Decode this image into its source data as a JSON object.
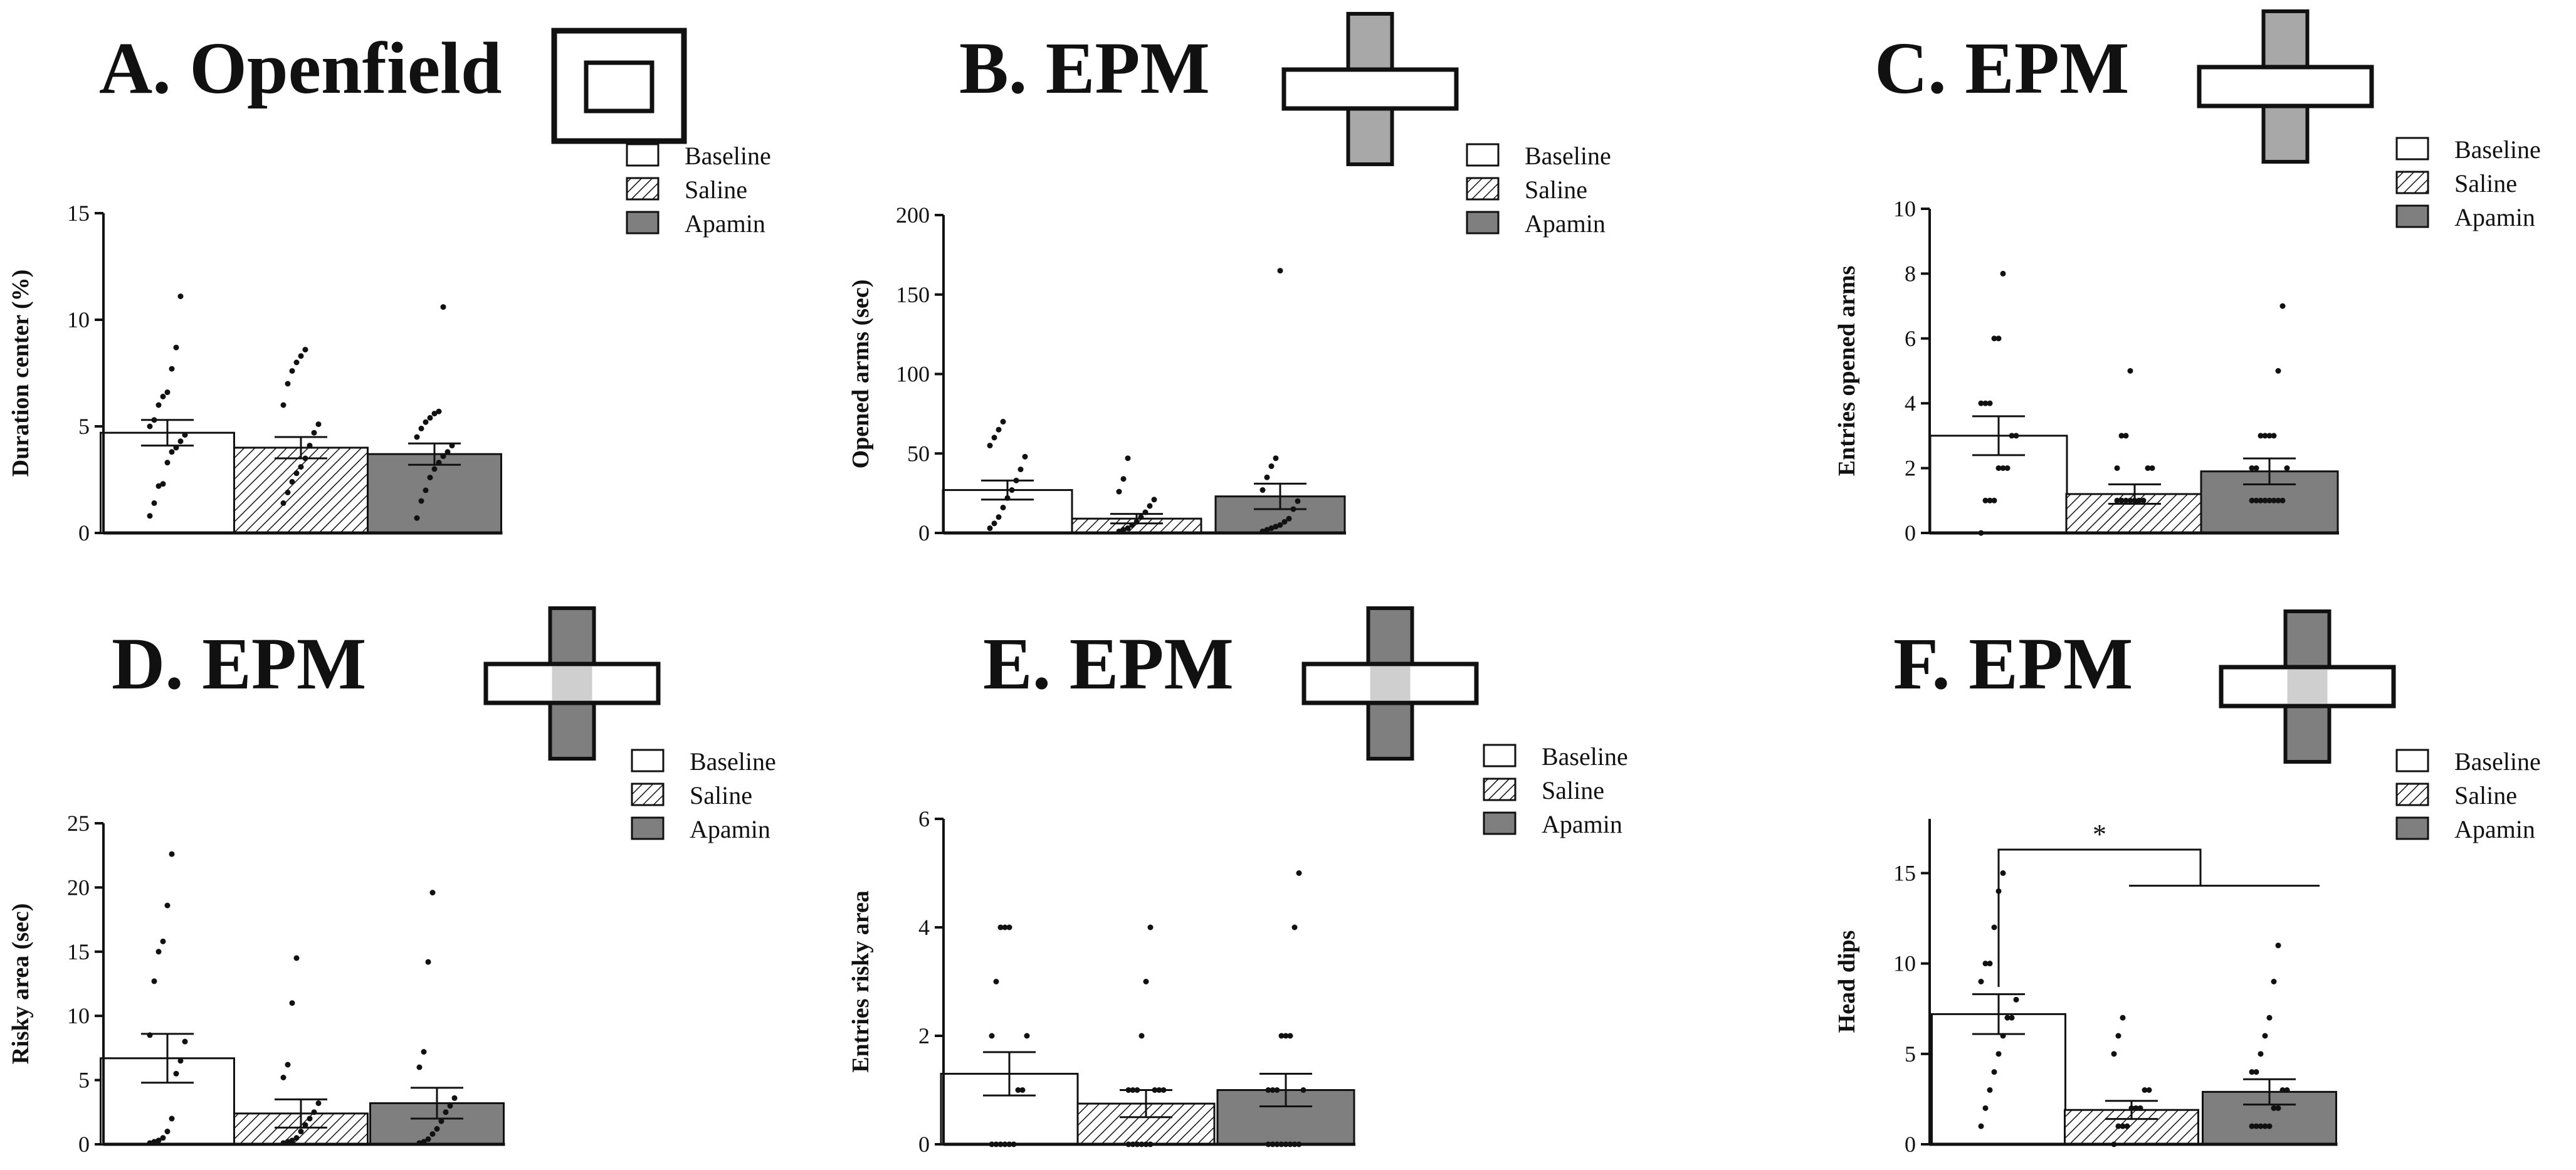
{
  "chart_data": [
    {
      "type": "bar",
      "panel": "A",
      "title": "A. Openfield",
      "arena": "openfield",
      "ylabel": "Duration center (%)",
      "ylim": [
        0,
        15
      ],
      "yticks": [
        0,
        5,
        10,
        15
      ],
      "categories": [
        "Baseline",
        "Saline",
        "Apamin"
      ],
      "values": [
        4.7,
        4.0,
        3.7
      ],
      "sem": [
        0.6,
        0.5,
        0.5
      ],
      "points": [
        [
          0.8,
          1.4,
          2.2,
          2.3,
          3.3,
          3.8,
          4.0,
          4.3,
          4.6,
          5.0,
          5.3,
          6.0,
          6.4,
          6.6,
          7.7,
          8.7,
          11.1
        ],
        [
          1.4,
          1.9,
          2.4,
          2.8,
          3.1,
          3.5,
          4.1,
          4.7,
          5.1,
          6.0,
          7.0,
          7.6,
          8.0,
          8.3,
          8.6
        ],
        [
          0.7,
          1.5,
          2.0,
          2.6,
          3.0,
          3.3,
          3.6,
          3.8,
          4.1,
          4.5,
          4.9,
          5.2,
          5.4,
          5.6,
          5.7,
          10.6
        ]
      ],
      "legend": [
        "Baseline",
        "Saline",
        "Apamin"
      ],
      "colors": [
        "#ffffff",
        "hatch",
        "#7f7f7f"
      ],
      "significance": ""
    },
    {
      "type": "bar",
      "panel": "B",
      "title": "B. EPM",
      "arena": "epm-open",
      "ylabel": "Opened arms (sec)",
      "ylim": [
        0,
        200
      ],
      "yticks": [
        0,
        50,
        100,
        150,
        200
      ],
      "categories": [
        "Baseline",
        "Saline",
        "Apamin"
      ],
      "values": [
        27,
        9,
        23
      ],
      "sem": [
        6,
        3,
        8
      ],
      "points": [
        [
          3,
          6,
          10,
          16,
          22,
          27,
          33,
          40,
          48,
          55,
          60,
          65,
          70
        ],
        [
          1,
          2,
          3,
          5,
          7,
          10,
          13,
          17,
          21,
          26,
          34,
          47
        ],
        [
          1,
          2,
          3,
          4,
          5,
          7,
          9,
          15,
          20,
          27,
          35,
          42,
          47,
          165
        ]
      ],
      "legend": [
        "Baseline",
        "Saline",
        "Apamin"
      ],
      "colors": [
        "#ffffff",
        "hatch",
        "#7f7f7f"
      ],
      "significance": ""
    },
    {
      "type": "bar",
      "panel": "C",
      "title": "C. EPM",
      "arena": "epm-open",
      "ylabel": "Entries opened arms",
      "ylim": [
        0,
        10
      ],
      "yticks": [
        0,
        2,
        4,
        6,
        8,
        10
      ],
      "categories": [
        "Baseline",
        "Saline",
        "Apamin"
      ],
      "values": [
        3.0,
        1.2,
        1.9
      ],
      "sem": [
        0.6,
        0.3,
        0.4
      ],
      "points": [
        [
          0,
          1,
          1,
          1,
          2,
          2,
          2,
          3,
          3,
          4,
          4,
          4,
          6,
          6,
          8
        ],
        [
          1,
          1,
          1,
          1,
          1,
          1,
          1,
          2,
          2,
          2,
          3,
          3,
          5
        ],
        [
          1,
          1,
          1,
          1,
          1,
          1,
          1,
          1,
          2,
          2,
          2,
          3,
          3,
          3,
          3,
          5,
          7
        ]
      ],
      "legend": [
        "Baseline",
        "Saline",
        "Apamin"
      ],
      "colors": [
        "#ffffff",
        "hatch",
        "#7f7f7f"
      ],
      "significance": ""
    },
    {
      "type": "bar",
      "panel": "D",
      "title": "D. EPM",
      "arena": "epm-risky",
      "ylabel": "Risky area (sec)",
      "ylim": [
        0,
        25
      ],
      "yticks": [
        0,
        5,
        10,
        15,
        20,
        25
      ],
      "categories": [
        "Baseline",
        "Saline",
        "Apamin"
      ],
      "values": [
        6.7,
        2.4,
        3.2
      ],
      "sem": [
        1.9,
        1.1,
        1.2
      ],
      "points": [
        [
          0.1,
          0.2,
          0.3,
          0.5,
          1.0,
          2.0,
          5.5,
          6.5,
          8.0,
          8.5,
          12.7,
          15.0,
          15.8,
          18.6,
          22.6
        ],
        [
          0.1,
          0.2,
          0.3,
          0.5,
          1.0,
          1.5,
          2.0,
          2.5,
          3.2,
          5.2,
          6.2,
          11.0,
          14.5
        ],
        [
          0.1,
          0.2,
          0.4,
          0.8,
          1.2,
          1.8,
          2.5,
          3.0,
          3.6,
          6.0,
          7.2,
          14.2,
          19.6
        ]
      ],
      "legend": [
        "Baseline",
        "Saline",
        "Apamin"
      ],
      "colors": [
        "#ffffff",
        "hatch",
        "#7f7f7f"
      ],
      "significance": ""
    },
    {
      "type": "bar",
      "panel": "E",
      "title": "E. EPM",
      "arena": "epm-risky",
      "ylabel": "Entries risky area",
      "ylim": [
        0,
        6
      ],
      "yticks": [
        0,
        2,
        4,
        6
      ],
      "categories": [
        "Baseline",
        "Saline",
        "Apamin"
      ],
      "values": [
        1.3,
        0.75,
        1.0
      ],
      "sem": [
        0.4,
        0.25,
        0.3
      ],
      "points": [
        [
          0,
          0,
          0,
          0,
          0,
          0,
          1,
          1,
          2,
          2,
          3,
          4,
          4,
          4
        ],
        [
          0,
          0,
          0,
          0,
          0,
          0,
          1,
          1,
          1,
          1,
          1,
          1,
          2,
          3,
          4
        ],
        [
          0,
          0,
          0,
          0,
          0,
          0,
          0,
          0,
          1,
          1,
          1,
          1,
          2,
          2,
          2,
          4,
          5
        ]
      ],
      "legend": [
        "Baseline",
        "Saline",
        "Apamin"
      ],
      "colors": [
        "#ffffff",
        "hatch",
        "#7f7f7f"
      ],
      "significance": ""
    },
    {
      "type": "bar",
      "panel": "F",
      "title": "F. EPM",
      "arena": "epm-risky",
      "ylabel": "Head dips",
      "ylim": [
        0,
        18
      ],
      "yticks": [
        0,
        5,
        10,
        15
      ],
      "categories": [
        "Baseline",
        "Saline",
        "Apamin"
      ],
      "values": [
        7.2,
        1.9,
        2.9
      ],
      "sem": [
        1.1,
        0.5,
        0.7
      ],
      "points": [
        [
          1,
          2,
          3,
          4,
          5,
          6,
          7,
          7,
          8,
          9,
          10,
          10,
          12,
          14,
          15
        ],
        [
          0,
          1,
          1,
          1,
          2,
          2,
          2,
          3,
          3,
          5,
          6,
          7
        ],
        [
          1,
          1,
          1,
          1,
          1,
          2,
          2,
          3,
          3,
          4,
          4,
          5,
          6,
          7,
          9,
          11
        ]
      ],
      "legend": [
        "Baseline",
        "Saline",
        "Apamin"
      ],
      "colors": [
        "#ffffff",
        "hatch",
        "#7f7f7f"
      ],
      "significance": "*"
    }
  ]
}
